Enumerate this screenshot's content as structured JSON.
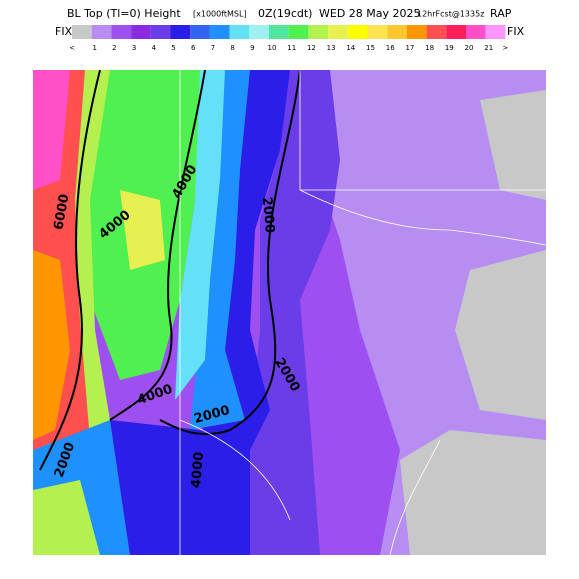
{
  "header": {
    "title_parts": [
      "BL Top (Tl=0) Height",
      "[x1000ftMSL]",
      "0Z(19cdt)",
      "WED 28 May 2025",
      "12hrFcst@1335z",
      "RAP"
    ]
  },
  "colorbar": {
    "left_label": "FIX",
    "right_label": "FIX",
    "low_label": "<",
    "high_label": ">",
    "labels": [
      "1",
      "2",
      "3",
      "4",
      "5",
      "6",
      "7",
      "8",
      "9",
      "10",
      "11",
      "12",
      "13",
      "14",
      "15",
      "16",
      "17",
      "18",
      "19",
      "20",
      "21"
    ],
    "fix_color": "#c8c8c8",
    "colors": [
      "#b78df2",
      "#9e4ff0",
      "#8a2be2",
      "#6a3de8",
      "#2b1ee8",
      "#3264f0",
      "#1e90ff",
      "#64e0f8",
      "#a0f0f0",
      "#50e6a0",
      "#50f050",
      "#b4f050",
      "#e6f050",
      "#ffff00",
      "#ffe650",
      "#ffc832",
      "#ff9600",
      "#ff5050",
      "#ff1e5a",
      "#ff50c8",
      "#ff96ff"
    ]
  },
  "map": {
    "contour_labels": [
      "6000",
      "4000",
      "4000",
      "4000",
      "4000",
      "2000",
      "2000",
      "2000",
      "2000"
    ]
  }
}
